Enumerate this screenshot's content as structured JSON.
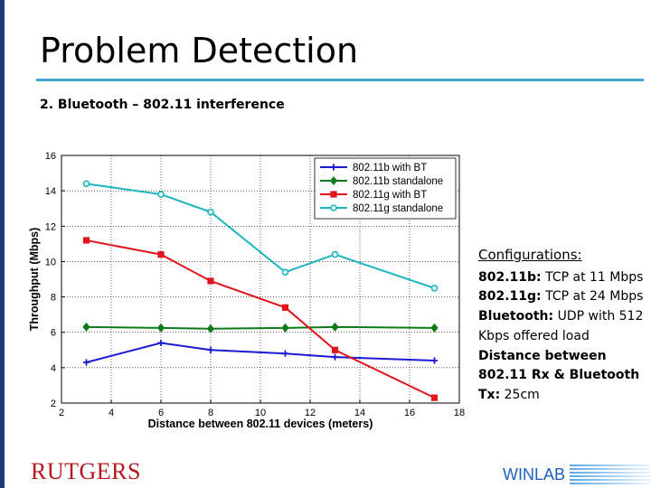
{
  "slide": {
    "title": "Problem Detection",
    "subtitle": "2.  Bluetooth – 802.11 interference"
  },
  "configurations": {
    "heading": "Configurations:",
    "lines": [
      {
        "label": "802.11b:",
        "text": " TCP at 11 Mbps"
      },
      {
        "label": "802.11g:",
        "text": " TCP at 24 Mbps"
      },
      {
        "label": "Bluetooth:",
        "text": " UDP with 512 Kbps offered load"
      },
      {
        "label": "Distance between 802.11 Rx & Bluetooth Tx:",
        "text": " 25cm"
      }
    ]
  },
  "footer": {
    "logo_text": "RUTGERS",
    "lab_text": "WINLAB"
  },
  "colors": {
    "accent_rule": "#3fa6c9",
    "left_bar": "#1f3a78"
  },
  "chart_data": {
    "type": "line",
    "xlabel": "Distance between 802.11 devices (meters)",
    "ylabel": "Throughput (Mbps)",
    "xlim": [
      2,
      18
    ],
    "ylim": [
      2,
      16
    ],
    "xticks": [
      2,
      4,
      6,
      8,
      10,
      12,
      14,
      16,
      18
    ],
    "yticks": [
      2,
      4,
      6,
      8,
      10,
      12,
      14,
      16
    ],
    "grid": true,
    "legend_position": "top-right",
    "series": [
      {
        "name": "802.11b with BT",
        "color": "#1a1ad4",
        "marker": "plus",
        "x": [
          3,
          6,
          8,
          11,
          13,
          17
        ],
        "y": [
          4.3,
          5.4,
          5.0,
          4.8,
          4.6,
          4.4
        ]
      },
      {
        "name": "802.11b standalone",
        "color": "#0f7a1a",
        "marker": "diamond",
        "x": [
          3,
          6,
          8,
          11,
          13,
          17
        ],
        "y": [
          6.3,
          6.25,
          6.2,
          6.25,
          6.3,
          6.25
        ]
      },
      {
        "name": "802.11g with BT",
        "color": "#e0161c",
        "marker": "square",
        "x": [
          3,
          6,
          8,
          11,
          13,
          17
        ],
        "y": [
          11.2,
          10.4,
          8.9,
          7.4,
          5.0,
          2.3
        ]
      },
      {
        "name": "802.11g standalone",
        "color": "#1ab5be",
        "marker": "circle",
        "x": [
          3,
          6,
          8,
          11,
          13,
          17
        ],
        "y": [
          14.4,
          13.8,
          12.8,
          9.4,
          10.4,
          8.5
        ]
      }
    ]
  }
}
